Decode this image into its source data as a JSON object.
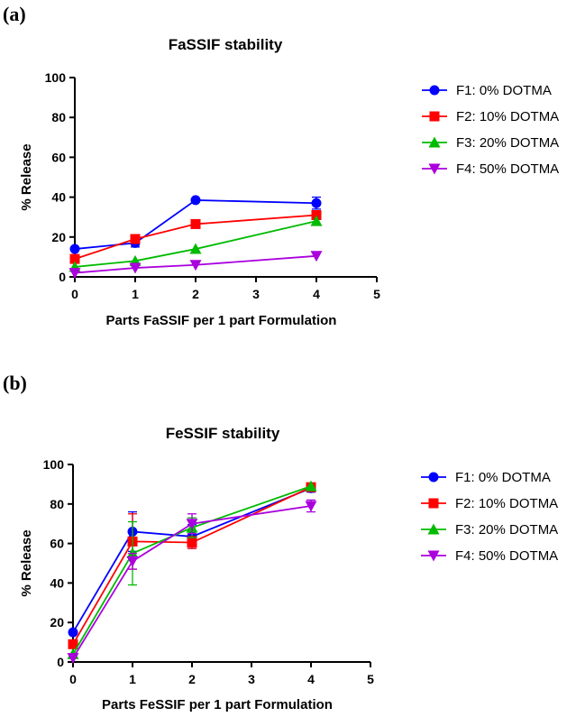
{
  "panel_labels": [
    "(a)",
    "(b)"
  ],
  "chart_data": [
    {
      "type": "line",
      "title": "FaSSIF stability",
      "xlabel": "Parts FaSSIF per 1 part Formulation",
      "ylabel": "% Release",
      "xlim": [
        0,
        5
      ],
      "ylim": [
        0,
        100
      ],
      "xticks": [
        0,
        1,
        2,
        3,
        4,
        5
      ],
      "yticks": [
        0,
        20,
        40,
        60,
        80,
        100
      ],
      "legend_position": "right",
      "series": [
        {
          "name": "F1: 0% DOTMA",
          "color": "#0000ff",
          "marker": "circle",
          "x": [
            0,
            1,
            2,
            4
          ],
          "y": [
            14,
            17,
            38.5,
            37
          ],
          "err": [
            0,
            2,
            0,
            3
          ]
        },
        {
          "name": "F2: 10% DOTMA",
          "color": "#ff0000",
          "marker": "square",
          "x": [
            0,
            1,
            2,
            4
          ],
          "y": [
            9,
            19,
            26.5,
            31
          ],
          "err": [
            0,
            0,
            0,
            2
          ]
        },
        {
          "name": "F3: 20% DOTMA",
          "color": "#00bb00",
          "marker": "triangle-up",
          "x": [
            0,
            1,
            2,
            4
          ],
          "y": [
            5,
            8,
            14,
            28
          ],
          "err": [
            0,
            0,
            0,
            0
          ]
        },
        {
          "name": "F4: 50% DOTMA",
          "color": "#aa00dd",
          "marker": "triangle-down",
          "x": [
            0,
            1,
            2,
            4
          ],
          "y": [
            2,
            4.5,
            6,
            10.5
          ],
          "err": [
            0,
            0,
            0,
            0
          ]
        }
      ]
    },
    {
      "type": "line",
      "title": "FeSSIF stability",
      "xlabel": "Parts FeSSIF per 1 part Formulation",
      "ylabel": "% Release",
      "xlim": [
        0,
        5
      ],
      "ylim": [
        0,
        100
      ],
      "xticks": [
        0,
        1,
        2,
        3,
        4,
        5
      ],
      "yticks": [
        0,
        20,
        40,
        60,
        80,
        100
      ],
      "legend_position": "right",
      "series": [
        {
          "name": "F1: 0% DOTMA",
          "color": "#0000ff",
          "marker": "circle",
          "x": [
            0,
            1,
            2,
            4
          ],
          "y": [
            15,
            66,
            63.5,
            88
          ],
          "err": [
            0,
            10,
            6,
            2
          ]
        },
        {
          "name": "F2: 10% DOTMA",
          "color": "#ff0000",
          "marker": "square",
          "x": [
            0,
            1,
            2,
            4
          ],
          "y": [
            9,
            61,
            60.5,
            88.5
          ],
          "err": [
            0,
            14,
            3,
            2
          ]
        },
        {
          "name": "F3: 20% DOTMA",
          "color": "#00bb00",
          "marker": "triangle-up",
          "x": [
            0,
            1,
            2,
            4
          ],
          "y": [
            4,
            55,
            68,
            89
          ],
          "err": [
            0,
            16,
            5,
            0
          ]
        },
        {
          "name": "F4: 50% DOTMA",
          "color": "#aa00dd",
          "marker": "triangle-down",
          "x": [
            0,
            1,
            2,
            4
          ],
          "y": [
            2,
            51,
            70,
            79
          ],
          "err": [
            0,
            4,
            5,
            3
          ]
        }
      ]
    }
  ]
}
